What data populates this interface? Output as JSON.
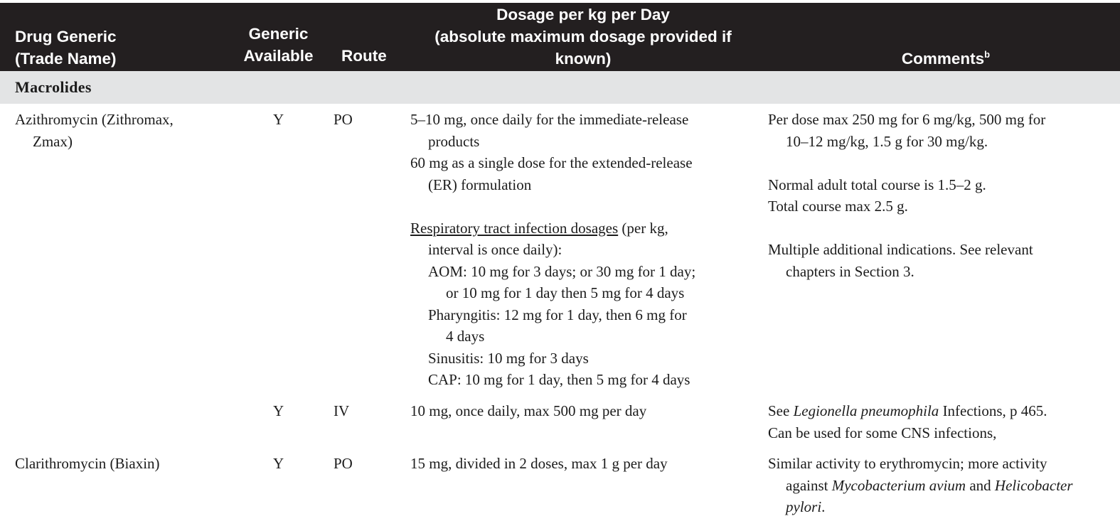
{
  "header": {
    "drug": [
      "Drug Generic",
      "(Trade Name)"
    ],
    "generic": [
      "Generic",
      "Available"
    ],
    "route": "Route",
    "dosage": [
      "Dosage per kg per Day",
      "(absolute maximum dosage provided if",
      "known)"
    ],
    "comments": "Comments",
    "comments_sup": "b"
  },
  "section": "Macrolides",
  "rows": [
    {
      "drug": [
        "Azithromycin (Zithromax,",
        "Zmax)"
      ],
      "generic": "Y",
      "route": "PO",
      "dose": {
        "l1": "5–10 mg, once daily for the immediate-release",
        "l2": "products",
        "l3": "60 mg as a single dose for the extended-release",
        "l4": "(ER) formulation",
        "rti_u": "Respiratory tract infection dosages",
        "rti_rest": " (per kg,",
        "l6": "interval is once daily):",
        "l7": "AOM: 10 mg for 3 days; or 30 mg for 1 day;",
        "l8": "or 10 mg for 1 day then 5 mg for 4 days",
        "l9": "Pharyngitis: 12 mg for 1 day, then 6 mg for",
        "l10": "4 days",
        "l11": "Sinusitis: 10 mg for 3 days",
        "l12": "CAP: 10 mg for 1 day, then 5 mg for 4 days"
      },
      "comments": {
        "l1": "Per dose max 250 mg for 6 mg/kg, 500 mg for",
        "l2": "10–12 mg/kg, 1.5 g for 30 mg/kg.",
        "l3": "Normal adult total course is 1.5–2 g.",
        "l4": "Total course max 2.5 g.",
        "l5": "Multiple additional indications. See relevant",
        "l6": "chapters in Section 3."
      }
    },
    {
      "generic": "Y",
      "route": "IV",
      "dose": "10 mg, once daily, max 500 mg per day",
      "comments": {
        "see": "See ",
        "organism": "Legionella pneumophila",
        "rest": " Infections, p 465.",
        "l2": "Can be used for some CNS infections,"
      }
    },
    {
      "drug": "Clarithromycin (Biaxin)",
      "generic": "Y",
      "route": "PO",
      "dose": "15 mg, divided in 2 doses, max 1 g per day",
      "comments": {
        "l1": "Similar activity to erythromycin; more activity",
        "l2_a": "against ",
        "l2_org1": "Mycobacterium avium",
        "l2_and": " and ",
        "l2_org2": "Helicobacter",
        "l3": "pylori",
        "l3_end": "."
      }
    }
  ]
}
